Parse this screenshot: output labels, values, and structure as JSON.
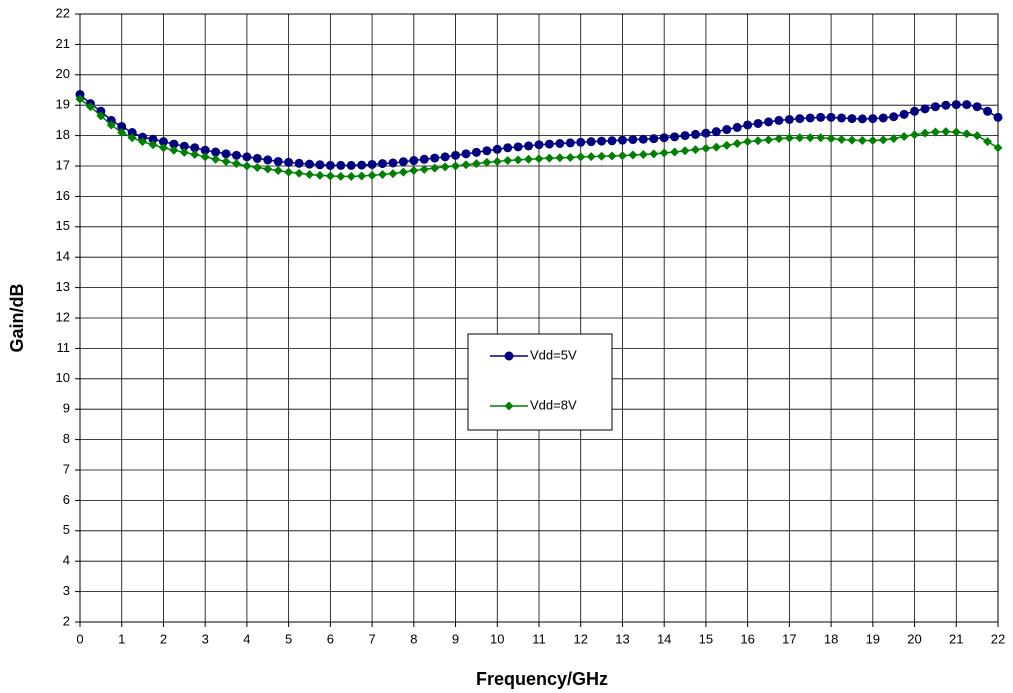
{
  "chart_data": {
    "type": "line",
    "xlabel": "Frequency/GHz",
    "ylabel": "Gain/dB",
    "x": [
      0,
      0.25,
      0.5,
      0.75,
      1,
      1.25,
      1.5,
      1.75,
      2,
      2.25,
      2.5,
      2.75,
      3,
      3.25,
      3.5,
      3.75,
      4,
      4.25,
      4.5,
      4.75,
      5,
      5.25,
      5.5,
      5.75,
      6,
      6.25,
      6.5,
      6.75,
      7,
      7.25,
      7.5,
      7.75,
      8,
      8.25,
      8.5,
      8.75,
      9,
      9.25,
      9.5,
      9.75,
      10,
      10.25,
      10.5,
      10.75,
      11,
      11.25,
      11.5,
      11.75,
      12,
      12.25,
      12.5,
      12.75,
      13,
      13.25,
      13.5,
      13.75,
      14,
      14.25,
      14.5,
      14.75,
      15,
      15.25,
      15.5,
      15.75,
      16,
      16.25,
      16.5,
      16.75,
      17,
      17.25,
      17.5,
      17.75,
      18,
      18.25,
      18.5,
      18.75,
      19,
      19.25,
      19.5,
      19.75,
      20,
      20.25,
      20.5,
      20.75,
      21,
      21.25,
      21.5,
      21.75,
      22
    ],
    "series": [
      {
        "name": "Vdd=5V",
        "color": "#000080",
        "marker": "circle",
        "values": [
          19.35,
          19.05,
          18.8,
          18.5,
          18.3,
          18.1,
          17.95,
          17.88,
          17.8,
          17.72,
          17.65,
          17.6,
          17.52,
          17.46,
          17.4,
          17.35,
          17.3,
          17.25,
          17.2,
          17.15,
          17.12,
          17.09,
          17.06,
          17.04,
          17.02,
          17.02,
          17.02,
          17.03,
          17.05,
          17.08,
          17.1,
          17.14,
          17.18,
          17.22,
          17.26,
          17.3,
          17.35,
          17.4,
          17.45,
          17.5,
          17.55,
          17.6,
          17.63,
          17.66,
          17.7,
          17.72,
          17.74,
          17.76,
          17.78,
          17.8,
          17.82,
          17.83,
          17.85,
          17.87,
          17.88,
          17.9,
          17.93,
          17.96,
          18.0,
          18.04,
          18.08,
          18.13,
          18.2,
          18.27,
          18.35,
          18.4,
          18.45,
          18.5,
          18.53,
          18.56,
          18.58,
          18.6,
          18.6,
          18.58,
          18.56,
          18.55,
          18.56,
          18.58,
          18.62,
          18.7,
          18.8,
          18.88,
          18.95,
          19.0,
          19.02,
          19.02,
          18.95,
          18.8,
          18.6
        ]
      },
      {
        "name": "Vdd=8V",
        "color": "#008000",
        "marker": "diamond",
        "values": [
          19.2,
          18.95,
          18.65,
          18.35,
          18.1,
          17.93,
          17.8,
          17.7,
          17.6,
          17.52,
          17.45,
          17.38,
          17.3,
          17.22,
          17.15,
          17.08,
          17.0,
          16.95,
          16.9,
          16.85,
          16.8,
          16.76,
          16.72,
          16.69,
          16.67,
          16.66,
          16.66,
          16.67,
          16.69,
          16.72,
          16.75,
          16.8,
          16.85,
          16.89,
          16.93,
          16.97,
          17.0,
          17.04,
          17.08,
          17.12,
          17.15,
          17.18,
          17.2,
          17.22,
          17.24,
          17.26,
          17.27,
          17.28,
          17.3,
          17.31,
          17.32,
          17.33,
          17.34,
          17.36,
          17.38,
          17.4,
          17.43,
          17.46,
          17.5,
          17.54,
          17.58,
          17.62,
          17.68,
          17.74,
          17.8,
          17.83,
          17.86,
          17.9,
          17.92,
          17.93,
          17.93,
          17.93,
          17.9,
          17.87,
          17.85,
          17.84,
          17.84,
          17.86,
          17.9,
          17.97,
          18.03,
          18.08,
          18.12,
          18.13,
          18.12,
          18.06,
          18.0,
          17.8,
          17.6
        ]
      }
    ],
    "xlim": [
      0,
      22
    ],
    "xticks": [
      0,
      1,
      2,
      3,
      4,
      5,
      6,
      7,
      8,
      9,
      10,
      11,
      12,
      13,
      14,
      15,
      16,
      17,
      18,
      19,
      20,
      21,
      22
    ],
    "ylim": [
      2,
      22
    ],
    "yticks": [
      2,
      3,
      4,
      5,
      6,
      7,
      8,
      9,
      10,
      11,
      12,
      13,
      14,
      15,
      16,
      17,
      18,
      19,
      20,
      21,
      22
    ],
    "grid": true
  }
}
